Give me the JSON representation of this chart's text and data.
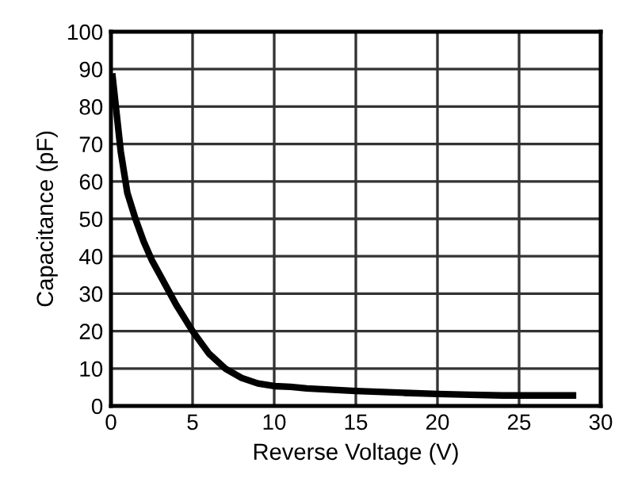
{
  "chart_data": {
    "type": "line",
    "xlabel": "Reverse Voltage (V)",
    "ylabel": "Capacitance (pF)",
    "x": [
      0.1,
      0.3,
      0.6,
      1,
      1.5,
      2,
      2.5,
      3,
      4,
      5,
      6,
      7,
      8,
      9,
      10,
      11,
      12,
      15,
      18,
      20,
      22,
      24,
      28.3
    ],
    "series": [
      {
        "color": "#000000",
        "values": [
          88,
          80,
          68,
          57,
          50,
          44,
          39,
          35,
          27,
          20,
          14,
          10,
          7.5,
          6,
          5.3,
          5.1,
          4.7,
          4,
          3.5,
          3.2,
          3,
          2.8,
          2.8
        ]
      }
    ],
    "xlim": [
      0,
      30
    ],
    "ylim": [
      0,
      100
    ],
    "xticks": [
      0,
      5,
      10,
      15,
      20,
      25,
      30
    ],
    "yticks": [
      0,
      10,
      20,
      30,
      40,
      50,
      60,
      70,
      80,
      90,
      100
    ],
    "grid": true,
    "legend": false,
    "line_style": "solid",
    "marker": "none"
  }
}
